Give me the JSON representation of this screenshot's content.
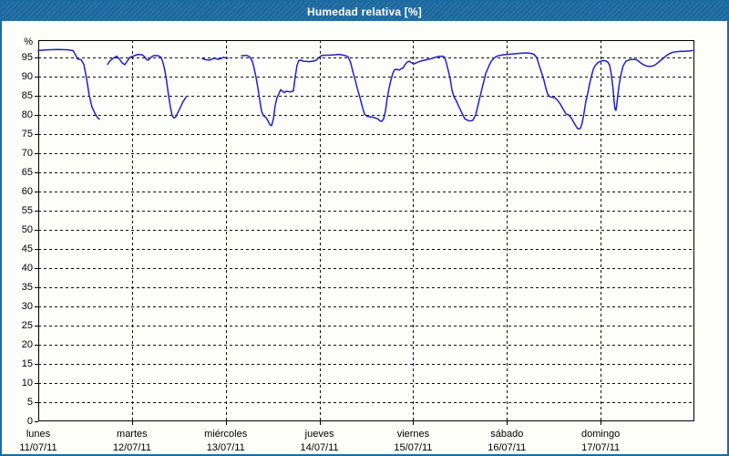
{
  "window": {
    "title": "Humedad relativa [%]",
    "titlebar_color": "#1c6ba3",
    "border_color": "#1c6ba3",
    "background_color": "#fdfdfa"
  },
  "chart_data": {
    "type": "line",
    "title": "Humedad relativa [%]",
    "ylabel": "%",
    "y_unit_label": "%",
    "ylim": [
      0,
      100
    ],
    "y_ticks": [
      0,
      5,
      10,
      15,
      20,
      25,
      30,
      35,
      40,
      45,
      50,
      55,
      60,
      65,
      70,
      75,
      80,
      85,
      90,
      95
    ],
    "x_days": [
      {
        "name": "lunes",
        "date": "11/07/11"
      },
      {
        "name": "martes",
        "date": "12/07/11"
      },
      {
        "name": "miércoles",
        "date": "13/07/11"
      },
      {
        "name": "jueves",
        "date": "14/07/11"
      },
      {
        "name": "viernes",
        "date": "15/07/11"
      },
      {
        "name": "sábado",
        "date": "16/07/11"
      },
      {
        "name": "domingo",
        "date": "17/07/11"
      }
    ],
    "xlim_days": [
      0,
      7
    ],
    "grid": "dashed-black",
    "legend": "none",
    "line_color": "#2121c8",
    "axis_color": "#000000",
    "series": [
      {
        "name": "Humedad relativa",
        "unit": "%",
        "segments": [
          [
            [
              0.0,
              96.8
            ],
            [
              0.097,
              97.0
            ],
            [
              0.214,
              97.1
            ],
            [
              0.311,
              97.0
            ],
            [
              0.369,
              96.8
            ],
            [
              0.399,
              95.6
            ],
            [
              0.418,
              94.6
            ],
            [
              0.457,
              94.4
            ],
            [
              0.486,
              93.2
            ],
            [
              0.515,
              89.5
            ],
            [
              0.544,
              85.0
            ],
            [
              0.574,
              82.0
            ],
            [
              0.603,
              80.5
            ],
            [
              0.632,
              79.3
            ],
            [
              0.651,
              78.9
            ]
          ],
          [
            [
              0.739,
              93.2
            ],
            [
              0.768,
              94.2
            ],
            [
              0.807,
              94.9
            ],
            [
              0.836,
              95.3
            ],
            [
              0.865,
              94.6
            ],
            [
              0.894,
              93.6
            ],
            [
              0.924,
              93.1
            ],
            [
              0.953,
              94.2
            ],
            [
              0.982,
              95.1
            ],
            [
              1.011,
              95.3
            ],
            [
              1.04,
              95.6
            ],
            [
              1.069,
              95.8
            ],
            [
              1.108,
              95.7
            ],
            [
              1.137,
              95.1
            ],
            [
              1.157,
              94.4
            ],
            [
              1.176,
              94.3
            ],
            [
              1.196,
              94.9
            ],
            [
              1.225,
              95.4
            ],
            [
              1.254,
              95.5
            ],
            [
              1.283,
              95.4
            ],
            [
              1.312,
              95.0
            ],
            [
              1.332,
              93.5
            ],
            [
              1.351,
              91.5
            ],
            [
              1.371,
              88.5
            ],
            [
              1.39,
              85.0
            ],
            [
              1.41,
              82.0
            ],
            [
              1.429,
              79.8
            ],
            [
              1.448,
              79.2
            ],
            [
              1.468,
              79.5
            ],
            [
              1.487,
              80.5
            ],
            [
              1.517,
              82.0
            ],
            [
              1.546,
              83.5
            ],
            [
              1.575,
              84.6
            ]
          ],
          [
            [
              1.75,
              94.7
            ],
            [
              1.789,
              94.4
            ],
            [
              1.828,
              94.3
            ],
            [
              1.857,
              94.6
            ],
            [
              1.886,
              94.8
            ],
            [
              1.915,
              94.5
            ],
            [
              1.944,
              94.7
            ],
            [
              1.974,
              95.0
            ],
            [
              2.022,
              94.8
            ]
          ],
          [
            [
              2.168,
              95.4
            ],
            [
              2.197,
              95.5
            ],
            [
              2.226,
              95.5
            ],
            [
              2.256,
              95.2
            ],
            [
              2.285,
              94.0
            ],
            [
              2.304,
              92.0
            ],
            [
              2.324,
              89.8
            ],
            [
              2.343,
              87.0
            ],
            [
              2.362,
              84.0
            ],
            [
              2.382,
              81.0
            ],
            [
              2.401,
              79.8
            ],
            [
              2.43,
              79.3
            ],
            [
              2.45,
              78.5
            ],
            [
              2.469,
              77.5
            ],
            [
              2.489,
              77.2
            ],
            [
              2.508,
              78.9
            ],
            [
              2.528,
              82.5
            ],
            [
              2.547,
              84.5
            ],
            [
              2.567,
              85.5
            ],
            [
              2.586,
              86.6
            ],
            [
              2.606,
              86.2
            ],
            [
              2.625,
              85.8
            ],
            [
              2.645,
              86.2
            ],
            [
              2.664,
              86.1
            ],
            [
              2.693,
              86.0
            ],
            [
              2.722,
              86.3
            ],
            [
              2.742,
              90.0
            ],
            [
              2.761,
              93.0
            ],
            [
              2.781,
              94.2
            ],
            [
              2.8,
              94.3
            ],
            [
              2.829,
              94.0
            ],
            [
              2.858,
              94.0
            ],
            [
              2.888,
              93.9
            ],
            [
              2.917,
              94.0
            ],
            [
              2.946,
              94.1
            ],
            [
              2.966,
              94.3
            ],
            [
              2.995,
              95.0
            ],
            [
              3.024,
              95.5
            ],
            [
              3.063,
              95.6
            ],
            [
              3.111,
              95.6
            ],
            [
              3.16,
              95.7
            ],
            [
              3.208,
              95.8
            ],
            [
              3.257,
              95.6
            ],
            [
              3.306,
              95.2
            ],
            [
              3.335,
              93.5
            ],
            [
              3.354,
              91.5
            ],
            [
              3.374,
              89.8
            ],
            [
              3.403,
              87.0
            ],
            [
              3.432,
              84.5
            ],
            [
              3.461,
              81.8
            ],
            [
              3.481,
              80.2
            ],
            [
              3.51,
              79.6
            ],
            [
              3.539,
              79.5
            ],
            [
              3.568,
              79.4
            ],
            [
              3.597,
              79.2
            ],
            [
              3.626,
              78.9
            ],
            [
              3.646,
              78.4
            ],
            [
              3.665,
              78.3
            ],
            [
              3.685,
              79.0
            ],
            [
              3.704,
              81.0
            ],
            [
              3.724,
              84.5
            ],
            [
              3.743,
              87.0
            ],
            [
              3.762,
              89.0
            ],
            [
              3.782,
              90.8
            ],
            [
              3.801,
              91.8
            ],
            [
              3.83,
              91.9
            ],
            [
              3.85,
              91.7
            ],
            [
              3.869,
              92.0
            ],
            [
              3.889,
              92.2
            ],
            [
              3.918,
              93.3
            ],
            [
              3.937,
              93.8
            ],
            [
              3.957,
              94.0
            ],
            [
              3.986,
              93.6
            ],
            [
              4.005,
              93.3
            ],
            [
              4.034,
              93.6
            ],
            [
              4.064,
              93.9
            ],
            [
              4.103,
              94.2
            ],
            [
              4.141,
              94.4
            ],
            [
              4.18,
              94.6
            ],
            [
              4.219,
              94.9
            ],
            [
              4.258,
              95.2
            ],
            [
              4.287,
              95.3
            ],
            [
              4.316,
              95.3
            ],
            [
              4.336,
              95.0
            ],
            [
              4.355,
              93.5
            ],
            [
              4.375,
              91.5
            ],
            [
              4.394,
              89.5
            ],
            [
              4.414,
              86.5
            ],
            [
              4.433,
              84.8
            ],
            [
              4.462,
              83.6
            ],
            [
              4.491,
              82.0
            ],
            [
              4.52,
              80.5
            ],
            [
              4.55,
              79.0
            ],
            [
              4.579,
              78.6
            ],
            [
              4.608,
              78.4
            ],
            [
              4.637,
              78.6
            ],
            [
              4.667,
              80.0
            ],
            [
              4.696,
              83.0
            ],
            [
              4.715,
              85.0
            ],
            [
              4.745,
              88.0
            ],
            [
              4.774,
              90.8
            ],
            [
              4.803,
              92.5
            ],
            [
              4.832,
              94.0
            ],
            [
              4.861,
              94.8
            ],
            [
              4.89,
              95.3
            ],
            [
              4.92,
              95.5
            ],
            [
              4.958,
              95.7
            ],
            [
              5.007,
              95.8
            ],
            [
              5.056,
              95.9
            ],
            [
              5.104,
              96.0
            ],
            [
              5.153,
              96.1
            ],
            [
              5.201,
              96.2
            ],
            [
              5.25,
              96.1
            ],
            [
              5.289,
              95.8
            ],
            [
              5.318,
              95.0
            ],
            [
              5.337,
              93.5
            ],
            [
              5.357,
              92.0
            ],
            [
              5.376,
              90.5
            ],
            [
              5.396,
              89.0
            ],
            [
              5.415,
              87.0
            ],
            [
              5.434,
              85.5
            ],
            [
              5.454,
              84.8
            ],
            [
              5.483,
              84.6
            ],
            [
              5.512,
              84.5
            ],
            [
              5.541,
              83.8
            ],
            [
              5.57,
              82.8
            ],
            [
              5.6,
              81.5
            ],
            [
              5.629,
              80.3
            ],
            [
              5.658,
              80.0
            ],
            [
              5.687,
              79.2
            ],
            [
              5.707,
              78.3
            ],
            [
              5.726,
              77.5
            ],
            [
              5.746,
              76.7
            ],
            [
              5.765,
              76.3
            ],
            [
              5.784,
              76.5
            ],
            [
              5.804,
              78.0
            ],
            [
              5.823,
              80.5
            ],
            [
              5.842,
              83.5
            ],
            [
              5.862,
              85.5
            ],
            [
              5.881,
              88.0
            ],
            [
              5.9,
              90.0
            ],
            [
              5.92,
              91.8
            ],
            [
              5.939,
              92.8
            ],
            [
              5.968,
              93.6
            ],
            [
              5.998,
              94.0
            ],
            [
              6.027,
              94.2
            ],
            [
              6.056,
              94.1
            ],
            [
              6.075,
              93.8
            ],
            [
              6.095,
              93.0
            ],
            [
              6.114,
              90.5
            ],
            [
              6.134,
              86.5
            ],
            [
              6.143,
              83.5
            ],
            [
              6.153,
              81.5
            ],
            [
              6.163,
              81.2
            ],
            [
              6.172,
              82.5
            ],
            [
              6.182,
              85.0
            ],
            [
              6.201,
              88.5
            ],
            [
              6.221,
              91.0
            ],
            [
              6.24,
              92.8
            ],
            [
              6.269,
              94.0
            ],
            [
              6.298,
              94.3
            ],
            [
              6.328,
              94.5
            ],
            [
              6.357,
              94.5
            ],
            [
              6.386,
              94.4
            ],
            [
              6.415,
              93.8
            ],
            [
              6.444,
              93.3
            ],
            [
              6.474,
              92.9
            ],
            [
              6.503,
              92.7
            ],
            [
              6.532,
              92.7
            ],
            [
              6.561,
              92.8
            ],
            [
              6.59,
              93.2
            ],
            [
              6.62,
              93.8
            ],
            [
              6.649,
              94.4
            ],
            [
              6.678,
              95.0
            ],
            [
              6.707,
              95.6
            ],
            [
              6.736,
              96.0
            ],
            [
              6.766,
              96.3
            ],
            [
              6.805,
              96.5
            ],
            [
              6.853,
              96.6
            ],
            [
              6.902,
              96.6
            ],
            [
              6.95,
              96.7
            ],
            [
              6.98,
              96.8
            ]
          ]
        ]
      }
    ]
  }
}
